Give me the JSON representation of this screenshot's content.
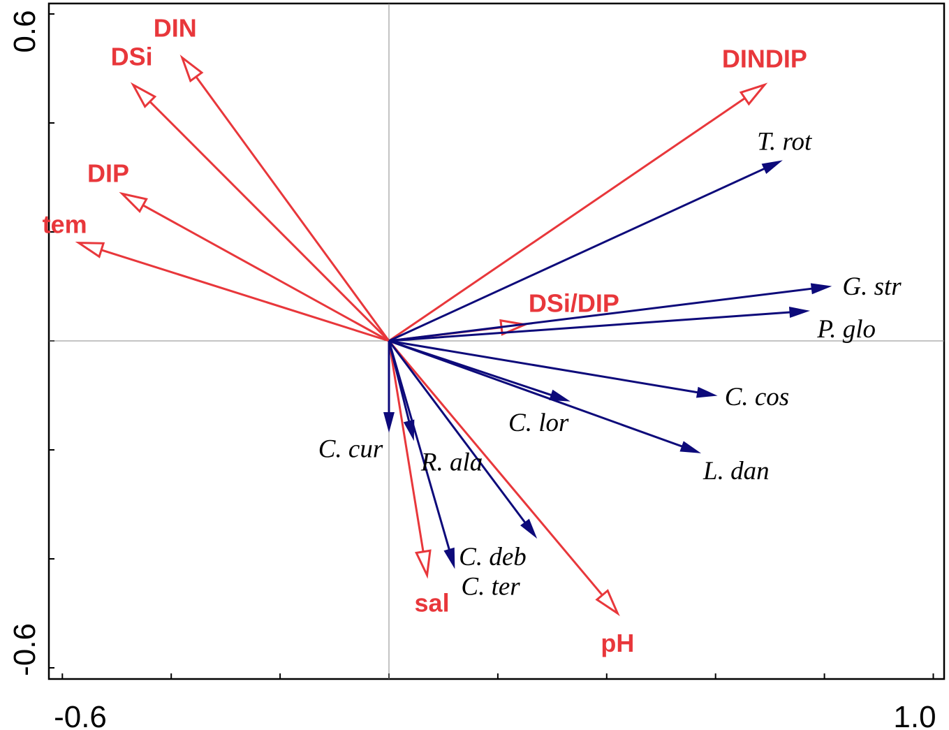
{
  "chart_data": {
    "type": "scatter",
    "subtype": "ordination-biplot",
    "title": "",
    "xlabel": "",
    "ylabel": "",
    "xlim": [
      -0.6,
      1.0
    ],
    "ylim": [
      -0.6,
      0.6
    ],
    "x_tick_labels": [
      "-0.6",
      "1.0"
    ],
    "y_tick_labels": [
      "0.6",
      "-0.6"
    ],
    "x_ticks": [
      -0.6,
      -0.4,
      -0.2,
      0.0,
      0.2,
      0.4,
      0.6,
      0.8,
      1.0
    ],
    "y_ticks": [
      0.6,
      0.4,
      0.2,
      0.0,
      -0.2,
      -0.4,
      -0.6
    ],
    "grid": false,
    "reference_lines": {
      "x": 0,
      "y": 0
    },
    "series": [
      {
        "name": "",
        "arrow_style": "open",
        "color": "#e8373b",
        "vectors": [
          {
            "label": "DIN",
            "x": -0.38,
            "y": 0.52
          },
          {
            "label": "DSi",
            "x": -0.47,
            "y": 0.47
          },
          {
            "label": "DIP",
            "x": -0.49,
            "y": 0.27
          },
          {
            "label": "tem",
            "x": -0.57,
            "y": 0.18
          },
          {
            "label": "DINDIP",
            "x": 0.69,
            "y": 0.47
          },
          {
            "label": "DSi/DIP",
            "x": 0.25,
            "y": 0.03
          },
          {
            "label": "sal",
            "x": 0.07,
            "y": -0.43
          },
          {
            "label": "pH",
            "x": 0.42,
            "y": -0.5
          }
        ]
      },
      {
        "name": "",
        "arrow_style": "filled",
        "color": "#0d0a7a",
        "vectors": [
          {
            "label": "T. rot",
            "x": 0.72,
            "y": 0.33
          },
          {
            "label": "G. str",
            "x": 0.81,
            "y": 0.1
          },
          {
            "label": "P. glo",
            "x": 0.77,
            "y": 0.055
          },
          {
            "label": "C. cos",
            "x": 0.6,
            "y": -0.1
          },
          {
            "label": "L. dan",
            "x": 0.57,
            "y": -0.205
          },
          {
            "label": "C. lor",
            "x": 0.33,
            "y": -0.11
          },
          {
            "label": "C. cur",
            "x": 0.0,
            "y": -0.165
          },
          {
            "label": "R. ala",
            "x": 0.045,
            "y": -0.18
          },
          {
            "label": "C. deb",
            "x": 0.27,
            "y": -0.36
          },
          {
            "label": "C. ter",
            "x": 0.12,
            "y": -0.415
          }
        ]
      }
    ]
  }
}
